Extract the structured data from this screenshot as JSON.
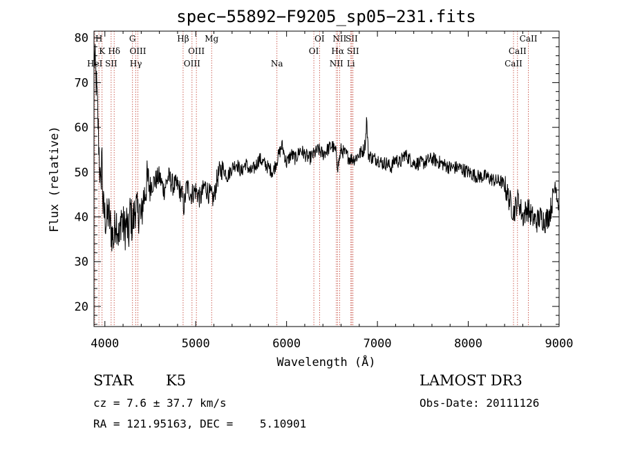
{
  "chart_data": {
    "type": "line",
    "title": "spec−55892−F9205_sp05−231.fits",
    "xlabel": "Wavelength (Å)",
    "ylabel": "Flux (relative)",
    "xlim": [
      3880,
      9000
    ],
    "ylim": [
      15.5,
      81.5
    ],
    "x_ticks": [
      4000,
      5000,
      6000,
      7000,
      8000,
      9000
    ],
    "y_ticks": [
      20,
      30,
      40,
      50,
      60,
      70,
      80
    ],
    "grid": false,
    "series": [
      {
        "name": "flux",
        "x": [
          3880,
          3900,
          3915,
          3930,
          3945,
          3955,
          3965,
          3980,
          4000,
          4020,
          4040,
          4060,
          4080,
          4100,
          4120,
          4140,
          4160,
          4180,
          4200,
          4220,
          4240,
          4260,
          4280,
          4300,
          4320,
          4340,
          4360,
          4380,
          4400,
          4420,
          4440,
          4460,
          4500,
          4550,
          4600,
          4650,
          4700,
          4750,
          4800,
          4850,
          4870,
          4900,
          4950,
          5000,
          5050,
          5100,
          5150,
          5200,
          5230,
          5260,
          5300,
          5350,
          5400,
          5450,
          5500,
          5550,
          5600,
          5650,
          5700,
          5750,
          5800,
          5850,
          5900,
          5950,
          6000,
          6050,
          6100,
          6150,
          6200,
          6250,
          6300,
          6350,
          6400,
          6450,
          6500,
          6550,
          6563,
          6600,
          6650,
          6700,
          6750,
          6800,
          6850,
          6870,
          6880,
          6900,
          6950,
          7000,
          7050,
          7100,
          7150,
          7200,
          7250,
          7300,
          7400,
          7500,
          7600,
          7700,
          7800,
          7900,
          8000,
          8100,
          8200,
          8300,
          8350,
          8400,
          8450,
          8500,
          8550,
          8600,
          8650,
          8700,
          8750,
          8800,
          8850,
          8900,
          8930,
          8960,
          9000
        ],
        "y": [
          76,
          72,
          66,
          58,
          50,
          44,
          56,
          42,
          40,
          39,
          41,
          38,
          36,
          35,
          40,
          38,
          34,
          41,
          38,
          37,
          39,
          35,
          42,
          38,
          40,
          43,
          40,
          42,
          39,
          44,
          45,
          48,
          47,
          48,
          49,
          46,
          49,
          47,
          47,
          45,
          42,
          47,
          45,
          46,
          44,
          47,
          45,
          44,
          48,
          50,
          51,
          49,
          51,
          52,
          50,
          52,
          50,
          51,
          53,
          52,
          51,
          50,
          53,
          56,
          52,
          54,
          53,
          55,
          54,
          53,
          54,
          55,
          54,
          55,
          56,
          54,
          51,
          55,
          54,
          53,
          53,
          54,
          55,
          57,
          62,
          54,
          53,
          53,
          52,
          52,
          51,
          53,
          52,
          54,
          52,
          52,
          53,
          52,
          51,
          51,
          50,
          49,
          49,
          48,
          48,
          47,
          44,
          41,
          44,
          40,
          42,
          40,
          39,
          40,
          39,
          41,
          44,
          48,
          42
        ]
      }
    ],
    "line_marks": [
      {
        "label": "H",
        "wl": 3934,
        "row": 0
      },
      {
        "label": "K",
        "wl": 3969,
        "row": 1
      },
      {
        "label": "HeI",
        "wl": 3889,
        "row": 2
      },
      {
        "label": "Hδ",
        "wl": 4102,
        "row": 1
      },
      {
        "label": "SII",
        "wl": 4069,
        "row": 2
      },
      {
        "label": "G",
        "wl": 4304,
        "row": 0
      },
      {
        "label": "OIII",
        "wl": 4363,
        "row": 1
      },
      {
        "label": "Hγ",
        "wl": 4341,
        "row": 2
      },
      {
        "label": "Hβ",
        "wl": 4861,
        "row": 0
      },
      {
        "label": "OIII",
        "wl": 5007,
        "row": 1
      },
      {
        "label": "OIII",
        "wl": 4959,
        "row": 2
      },
      {
        "label": "Mg",
        "wl": 5175,
        "row": 0
      },
      {
        "label": "Na",
        "wl": 5894,
        "row": 2
      },
      {
        "label": "OI",
        "wl": 6363,
        "row": 0
      },
      {
        "label": "OI",
        "wl": 6300,
        "row": 1
      },
      {
        "label": "NII",
        "wl": 6584,
        "row": 0
      },
      {
        "label": "Hα",
        "wl": 6563,
        "row": 1
      },
      {
        "label": "NII",
        "wl": 6548,
        "row": 2
      },
      {
        "label": "SII",
        "wl": 6717,
        "row": 0
      },
      {
        "label": "SII",
        "wl": 6731,
        "row": 1
      },
      {
        "label": "Li",
        "wl": 6708,
        "row": 2
      },
      {
        "label": "CaII",
        "wl": 8662,
        "row": 0
      },
      {
        "label": "CaII",
        "wl": 8542,
        "row": 1
      },
      {
        "label": "CaII",
        "wl": 8498,
        "row": 2
      }
    ]
  },
  "info": {
    "object_class": "STAR",
    "subclass": "K5",
    "survey": "LAMOST DR3",
    "redshift": "cz = 7.6 ± 37.7 km/s",
    "obs_date": "Obs-Date: 20111126",
    "coords": "RA = 121.95163, DEC =    5.10901"
  }
}
